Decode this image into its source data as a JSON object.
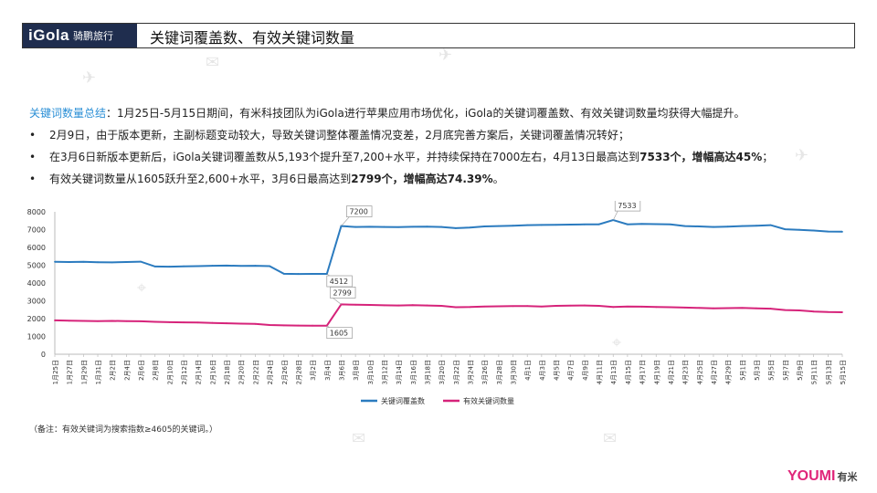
{
  "header": {
    "logo_text": "iGola",
    "logo_cn": "骑鹏旅行",
    "title": "关键词覆盖数、有效关键词数量"
  },
  "summary": {
    "label": "关键词数量总结",
    "intro": "：1月25日-5月15日期间，有米科技团队为iGola进行苹果应用市场优化，iGola的关键词覆盖数、有效关键词数量均获得大幅提升。",
    "bullet1": "2月9日，由于版本更新，主副标题变动较大，导致关键词整体覆盖情况变差，2月底完善方案后，关键词覆盖情况转好；",
    "bullet2_a": "在3月6日新版本更新后，iGola关键词覆盖数从5,193个提升至7,200+水平，并持续保持在7000左右，4月13日最高达到",
    "bullet2_b": "7533个，增幅高达45%",
    "bullet2_c": "；",
    "bullet3_a": "有效关键词数量从1605跃升至2,600+水平，3月6日最高达到",
    "bullet3_b": "2799个，增幅高达74.39%",
    "bullet3_c": "。",
    "bullet_symbol": "•"
  },
  "note": "（备注：有效关键词为搜索指数≥4605的关键词。）",
  "brand": {
    "main": "YOUMI",
    "sub": "有米"
  },
  "colors": {
    "coverage": "#2b7bbf",
    "effective": "#d6237a",
    "accent": "#2b8fd6"
  },
  "chart_data": {
    "type": "line",
    "title": "",
    "xlabel": "",
    "ylabel": "",
    "ylim": [
      0,
      8000
    ],
    "yticks": [
      0,
      1000,
      2000,
      3000,
      4000,
      5000,
      6000,
      7000,
      8000
    ],
    "grid": false,
    "legend_position": "bottom",
    "x": [
      "1月25日",
      "1月27日",
      "1月29日",
      "1月31日",
      "2月2日",
      "2月4日",
      "2月6日",
      "2月8日",
      "2月10日",
      "2月12日",
      "2月14日",
      "2月16日",
      "2月18日",
      "2月20日",
      "2月22日",
      "2月24日",
      "2月26日",
      "2月28日",
      "3月2日",
      "3月4日",
      "3月6日",
      "3月8日",
      "3月10日",
      "3月12日",
      "3月14日",
      "3月16日",
      "3月18日",
      "3月20日",
      "3月22日",
      "3月24日",
      "3月26日",
      "3月28日",
      "3月30日",
      "4月1日",
      "4月3日",
      "4月5日",
      "4月7日",
      "4月9日",
      "4月11日",
      "4月13日",
      "4月15日",
      "4月17日",
      "4月19日",
      "4月21日",
      "4月23日",
      "4月25日",
      "4月27日",
      "4月29日",
      "5月1日",
      "5月3日",
      "5月5日",
      "5月7日",
      "5月9日",
      "5月11日",
      "5月13日",
      "5月15日"
    ],
    "series": [
      {
        "name": "关键词覆盖数",
        "values": [
          5193,
          5180,
          5190,
          5170,
          5160,
          5180,
          5200,
          4930,
          4920,
          4940,
          4950,
          4970,
          4980,
          4960,
          4970,
          4950,
          4520,
          4510,
          4512,
          4512,
          7200,
          7150,
          7160,
          7150,
          7140,
          7160,
          7170,
          7150,
          7080,
          7120,
          7180,
          7200,
          7220,
          7250,
          7260,
          7270,
          7280,
          7290,
          7300,
          7533,
          7300,
          7320,
          7310,
          7290,
          7200,
          7180,
          7150,
          7170,
          7200,
          7220,
          7250,
          7020,
          6990,
          6950,
          6890,
          6880
        ]
      },
      {
        "name": "有效关键词数量",
        "values": [
          1900,
          1880,
          1870,
          1860,
          1870,
          1860,
          1850,
          1820,
          1800,
          1790,
          1780,
          1760,
          1740,
          1720,
          1700,
          1640,
          1620,
          1610,
          1605,
          1605,
          2799,
          2780,
          2770,
          2750,
          2740,
          2760,
          2740,
          2720,
          2640,
          2650,
          2680,
          2690,
          2700,
          2710,
          2680,
          2720,
          2730,
          2740,
          2720,
          2650,
          2680,
          2670,
          2650,
          2640,
          2620,
          2600,
          2580,
          2590,
          2600,
          2580,
          2560,
          2480,
          2460,
          2400,
          2370,
          2360
        ]
      }
    ],
    "annotations": [
      {
        "series": 0,
        "x": "3月6日",
        "label": "7200"
      },
      {
        "series": 0,
        "x": "3月4日",
        "label": "4512"
      },
      {
        "series": 0,
        "x": "4月13日",
        "label": "7533"
      },
      {
        "series": 1,
        "x": "3月6日",
        "label": "2799"
      },
      {
        "series": 1,
        "x": "3月4日",
        "label": "1605"
      }
    ]
  }
}
